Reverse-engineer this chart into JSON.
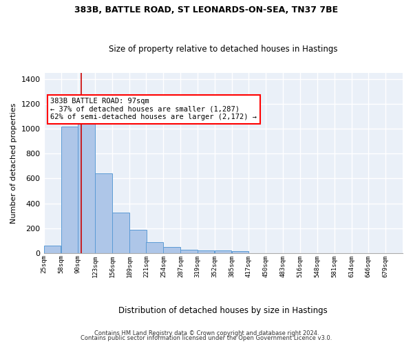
{
  "title1": "383B, BATTLE ROAD, ST LEONARDS-ON-SEA, TN37 7BE",
  "title2": "Size of property relative to detached houses in Hastings",
  "xlabel": "Distribution of detached houses by size in Hastings",
  "ylabel": "Number of detached properties",
  "footnote1": "Contains HM Land Registry data © Crown copyright and database right 2024.",
  "footnote2": "Contains public sector information licensed under the Open Government Licence v3.0.",
  "bar_color": "#aec6e8",
  "bar_edge_color": "#5b9bd5",
  "background_color": "#eaf0f8",
  "grid_color": "#ffffff",
  "property_line_color": "#cc0000",
  "annotation_line1": "383B BATTLE ROAD: 97sqm",
  "annotation_line2": "← 37% of detached houses are smaller (1,287)",
  "annotation_line3": "62% of semi-detached houses are larger (2,172) →",
  "property_value": 97,
  "bins": [
    25,
    58,
    90,
    123,
    156,
    189,
    221,
    254,
    287,
    319,
    352,
    385,
    417,
    450,
    483,
    516,
    548,
    581,
    614,
    646,
    679
  ],
  "counts": [
    60,
    1020,
    1100,
    640,
    325,
    190,
    90,
    47,
    25,
    22,
    20,
    18,
    0,
    0,
    0,
    0,
    0,
    0,
    0,
    0
  ],
  "ylim": [
    0,
    1450
  ],
  "yticks": [
    0,
    200,
    400,
    600,
    800,
    1000,
    1200,
    1400
  ]
}
